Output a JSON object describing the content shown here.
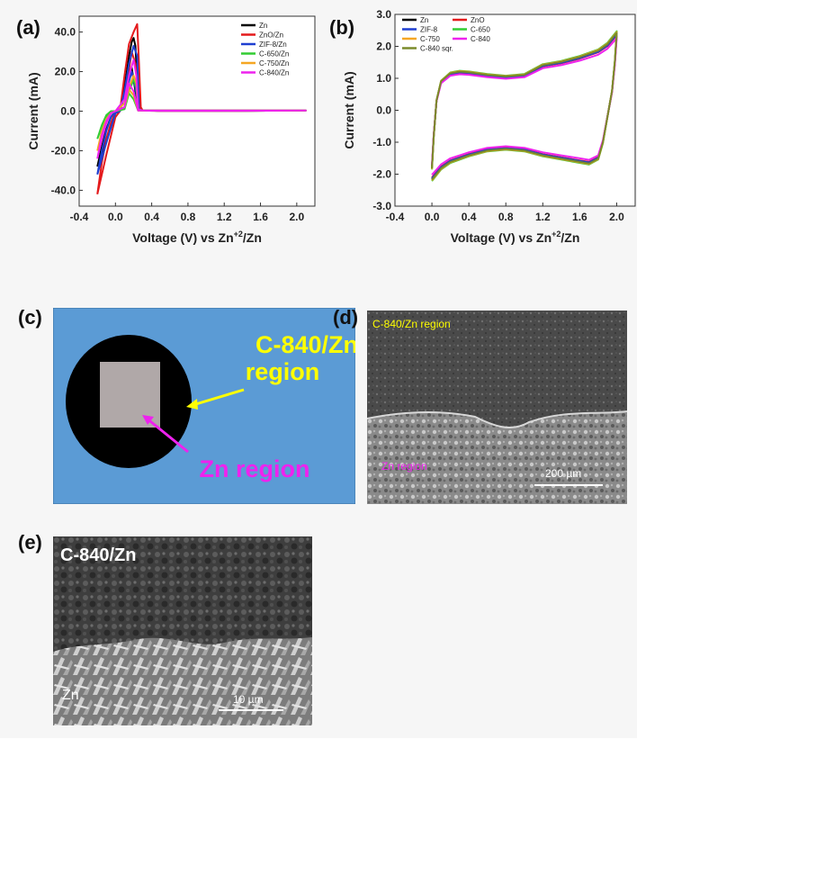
{
  "panels": {
    "a": "(a)",
    "b": "(b)",
    "c": "(c)",
    "d": "(d)",
    "e": "(e)"
  },
  "chart_data": [
    {
      "type": "line",
      "panel": "(a)",
      "xlabel": "Voltage (V) vs Zn",
      "xlabel_sup": "+2",
      "xlabel_tail": "/Zn",
      "ylabel": "Current (mA)",
      "xlim": [
        -0.4,
        2.2
      ],
      "ylim": [
        -48,
        48
      ],
      "xticks": [
        "-0.4",
        "0.0",
        "0.4",
        "0.8",
        "1.2",
        "1.6",
        "2.0"
      ],
      "xtick_values": [
        -0.4,
        0.0,
        0.4,
        0.8,
        1.2,
        1.6,
        2.0
      ],
      "yticks": [
        "-40.0",
        "-20.0",
        "0.0",
        "20.0",
        "40.0"
      ],
      "ytick_values": [
        -40,
        -20,
        0,
        20,
        40
      ],
      "legend_position": "top-right",
      "series": [
        {
          "name": "Zn",
          "color": "#000000",
          "x": [
            -0.2,
            -0.1,
            0.0,
            0.05,
            0.1,
            0.15,
            0.18,
            0.2,
            0.22,
            0.24,
            0.26,
            0.3,
            0.5,
            1.0,
            2.1,
            1.0,
            0.5,
            0.26,
            0.22,
            0.18,
            0.12,
            0.05,
            0.0,
            -0.05,
            -0.1,
            -0.15,
            -0.2
          ],
          "y": [
            -28,
            -14,
            -1,
            0,
            12,
            28,
            35,
            37,
            33,
            15,
            1,
            0.4,
            0.3,
            0.3,
            0.3,
            0.1,
            0.1,
            0.5,
            10,
            22,
            14,
            0.5,
            0,
            -3,
            -9,
            -18,
            -28
          ]
        },
        {
          "name": "ZnO/Zn",
          "color": "#e41a1c",
          "x": [
            -0.2,
            -0.1,
            0.0,
            0.05,
            0.1,
            0.15,
            0.2,
            0.24,
            0.26,
            0.28,
            0.3,
            0.5,
            1.0,
            2.1,
            1.0,
            0.5,
            0.28,
            0.22,
            0.18,
            0.12,
            0.05,
            0.0,
            -0.05,
            -0.1,
            -0.15,
            -0.2
          ],
          "y": [
            -42,
            -22,
            -3,
            0,
            18,
            34,
            40,
            44,
            24,
            2,
            0.5,
            0.3,
            0.3,
            0.3,
            0.1,
            0.1,
            0.5,
            24,
            30,
            12,
            0.5,
            0,
            -6,
            -14,
            -26,
            -42
          ]
        },
        {
          "name": "ZIF-8/Zn",
          "color": "#1f3fd1",
          "x": [
            -0.2,
            -0.1,
            0.0,
            0.05,
            0.1,
            0.15,
            0.2,
            0.24,
            0.26,
            0.3,
            0.5,
            1.0,
            2.1,
            1.0,
            0.5,
            0.26,
            0.22,
            0.18,
            0.12,
            0.05,
            0.0,
            -0.05,
            -0.1,
            -0.15,
            -0.2
          ],
          "y": [
            -32,
            -16,
            -1,
            0,
            10,
            24,
            33,
            28,
            1,
            0.4,
            0.3,
            0.3,
            0.3,
            0.1,
            0.1,
            0.5,
            12,
            20,
            10,
            0.5,
            0,
            -3,
            -10,
            -20,
            -32
          ]
        },
        {
          "name": "C-650/Zn",
          "color": "#33cc33",
          "x": [
            -0.2,
            -0.15,
            -0.1,
            -0.05,
            0.0,
            0.1,
            0.15,
            0.2,
            0.23,
            0.25,
            0.3,
            0.5,
            1.0,
            2.1,
            1.0,
            0.5,
            0.25,
            0.2,
            0.15,
            0.1,
            0.0,
            -0.05,
            -0.1,
            -0.15,
            -0.2
          ],
          "y": [
            -14,
            -8,
            -3,
            0,
            0,
            2,
            10,
            16,
            12,
            1,
            0.3,
            0.3,
            0.3,
            0.3,
            0.1,
            0.1,
            0.3,
            6,
            9,
            1,
            0,
            0,
            -2,
            -7,
            -14
          ]
        },
        {
          "name": "C-750/Zn",
          "color": "#f5a623",
          "x": [
            -0.2,
            -0.15,
            -0.1,
            -0.05,
            0.0,
            0.1,
            0.15,
            0.2,
            0.23,
            0.25,
            0.3,
            0.5,
            1.0,
            2.1,
            1.0,
            0.5,
            0.25,
            0.2,
            0.15,
            0.1,
            0.0,
            -0.05,
            -0.1,
            -0.15,
            -0.2
          ],
          "y": [
            -20,
            -12,
            -5,
            -1,
            0,
            4,
            12,
            18,
            14,
            1,
            0.3,
            0.3,
            0.3,
            0.3,
            0.1,
            0.1,
            0.3,
            8,
            11,
            2,
            0,
            -1,
            -4,
            -10,
            -20
          ]
        },
        {
          "name": "C-840/Zn",
          "color": "#ee22ee",
          "x": [
            -0.2,
            -0.15,
            -0.1,
            -0.05,
            0.0,
            0.1,
            0.15,
            0.2,
            0.23,
            0.25,
            0.3,
            0.5,
            1.0,
            2.1,
            1.0,
            0.5,
            0.25,
            0.2,
            0.15,
            0.1,
            0.0,
            -0.05,
            -0.1,
            -0.15,
            -0.2
          ],
          "y": [
            -24,
            -14,
            -6,
            -1,
            0,
            6,
            18,
            26,
            18,
            1,
            0.3,
            0.3,
            0.3,
            0.3,
            0.1,
            0.1,
            0.3,
            10,
            14,
            2,
            0,
            -1,
            -5,
            -12,
            -24
          ]
        }
      ]
    },
    {
      "type": "line",
      "panel": "(b)",
      "xlabel": "Voltage (V) vs Zn",
      "xlabel_sup": "+2",
      "xlabel_tail": "/Zn",
      "ylabel": "Current (mA)",
      "xlim": [
        -0.4,
        2.2
      ],
      "ylim": [
        -3.0,
        3.0
      ],
      "xticks": [
        "-0.4",
        "0.0",
        "0.4",
        "0.8",
        "1.2",
        "1.6",
        "2.0"
      ],
      "xtick_values": [
        -0.4,
        0.0,
        0.4,
        0.8,
        1.2,
        1.6,
        2.0
      ],
      "yticks": [
        "-3.0",
        "-2.0",
        "-1.0",
        "0.0",
        "1.0",
        "2.0",
        "3.0"
      ],
      "ytick_values": [
        -3,
        -2,
        -1,
        0,
        1,
        2,
        3
      ],
      "legend_position": "top-left",
      "series": [
        {
          "name": "Zn",
          "color": "#000000",
          "scale": 1.0
        },
        {
          "name": "ZnO",
          "color": "#e41a1c",
          "scale": 0.98
        },
        {
          "name": "ZIF-8",
          "color": "#1f3fd1",
          "scale": 0.99
        },
        {
          "name": "C-650",
          "color": "#33cc33",
          "scale": 1.03
        },
        {
          "name": "C-750",
          "color": "#f5a623",
          "scale": 1.02
        },
        {
          "name": "C-840",
          "color": "#ee22ee",
          "scale": 0.94
        },
        {
          "name": "C-840 sqr.",
          "color": "#7a8a2a",
          "scale": 1.01
        }
      ],
      "curve": {
        "upper": {
          "x": [
            0.0,
            0.02,
            0.05,
            0.1,
            0.2,
            0.3,
            0.4,
            0.6,
            0.8,
            1.0,
            1.1,
            1.2,
            1.4,
            1.6,
            1.8,
            1.9,
            2.0
          ],
          "y": [
            -1.8,
            -0.8,
            0.3,
            0.9,
            1.15,
            1.2,
            1.18,
            1.1,
            1.05,
            1.1,
            1.25,
            1.4,
            1.5,
            1.65,
            1.85,
            2.05,
            2.4
          ]
        },
        "lower": {
          "x": [
            2.0,
            1.98,
            1.95,
            1.9,
            1.85,
            1.8,
            1.7,
            1.6,
            1.4,
            1.2,
            1.0,
            0.8,
            0.6,
            0.4,
            0.2,
            0.1,
            0.0
          ],
          "y": [
            2.4,
            1.5,
            0.6,
            -0.2,
            -1.0,
            -1.5,
            -1.65,
            -1.6,
            -1.5,
            -1.4,
            -1.25,
            -1.2,
            -1.25,
            -1.4,
            -1.6,
            -1.8,
            -2.15
          ]
        }
      }
    }
  ],
  "schematic_c": {
    "outer_label_line1": "C-840/Zn",
    "outer_label_line2": "region",
    "inner_label": "Zn region",
    "colors": {
      "background": "#5b9bd5",
      "disk": "#000000",
      "square": "#b0a8a8",
      "yellow": "#ffff00",
      "magenta": "#ee22ee"
    }
  },
  "sem_d": {
    "top_label": "C-840/Zn region",
    "bottom_label": "Zn region",
    "scale_label": "200 µm"
  },
  "sem_e": {
    "top_label": "C-840/Zn",
    "bottom_label": "Zn",
    "scale_label": "10 µm"
  }
}
